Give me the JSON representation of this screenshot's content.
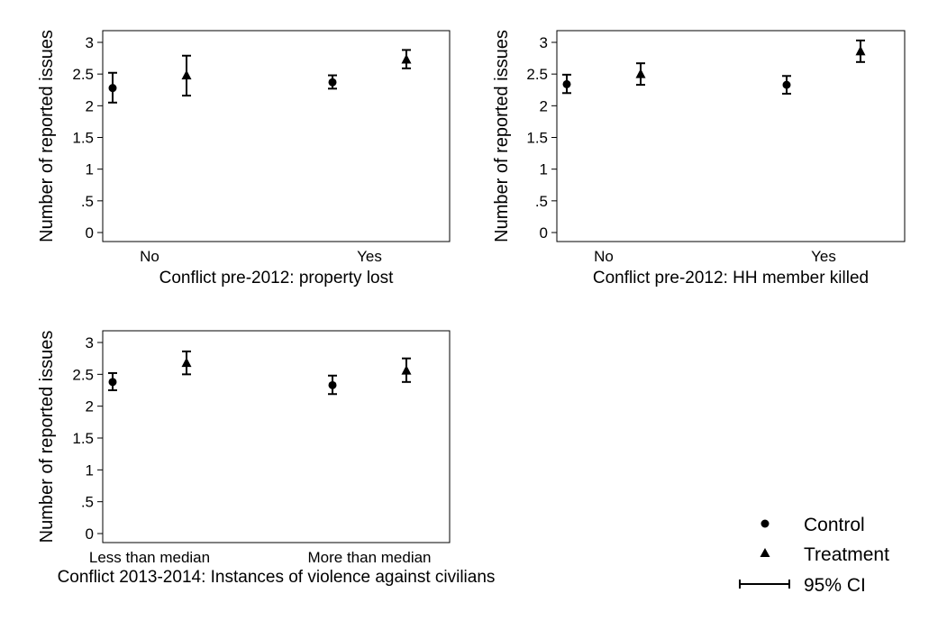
{
  "chart_data": [
    {
      "type": "scatter",
      "ylabel": "Number of reported issues",
      "xlabel": "Conflict pre-2012: property lost",
      "categories": [
        "No",
        "Yes"
      ],
      "ylim": [
        0,
        3
      ],
      "yticks": [
        "0",
        ".5",
        "1",
        "1.5",
        "2",
        "2.5",
        "3"
      ],
      "grid": false,
      "series": [
        {
          "name": "Control",
          "marker": "circle",
          "values": [
            2.28,
            2.37
          ],
          "ci": [
            [
              2.05,
              2.52
            ],
            [
              2.27,
              2.48
            ]
          ]
        },
        {
          "name": "Treatment",
          "marker": "triangle",
          "values": [
            2.48,
            2.73
          ],
          "ci": [
            [
              2.16,
              2.79
            ],
            [
              2.59,
              2.88
            ]
          ]
        }
      ]
    },
    {
      "type": "scatter",
      "ylabel": "Number of reported issues",
      "xlabel": "Conflict pre-2012: HH member killed",
      "categories": [
        "No",
        "Yes"
      ],
      "ylim": [
        0,
        3
      ],
      "yticks": [
        "0",
        ".5",
        "1",
        "1.5",
        "2",
        "2.5",
        "3"
      ],
      "grid": false,
      "series": [
        {
          "name": "Control",
          "marker": "circle",
          "values": [
            2.34,
            2.33
          ],
          "ci": [
            [
              2.2,
              2.49
            ],
            [
              2.19,
              2.47
            ]
          ]
        },
        {
          "name": "Treatment",
          "marker": "triangle",
          "values": [
            2.5,
            2.86
          ],
          "ci": [
            [
              2.33,
              2.67
            ],
            [
              2.69,
              3.03
            ]
          ]
        }
      ]
    },
    {
      "type": "scatter",
      "ylabel": "Number of reported issues",
      "xlabel": "Conflict 2013-2014: Instances of violence against civilians",
      "categories": [
        "Less than median",
        "More than median"
      ],
      "ylim": [
        0,
        3
      ],
      "yticks": [
        "0",
        ".5",
        "1",
        "1.5",
        "2",
        "2.5",
        "3"
      ],
      "grid": false,
      "series": [
        {
          "name": "Control",
          "marker": "circle",
          "values": [
            2.38,
            2.33
          ],
          "ci": [
            [
              2.25,
              2.52
            ],
            [
              2.19,
              2.48
            ]
          ]
        },
        {
          "name": "Treatment",
          "marker": "triangle",
          "values": [
            2.68,
            2.56
          ],
          "ci": [
            [
              2.5,
              2.86
            ],
            [
              2.38,
              2.75
            ]
          ]
        }
      ]
    }
  ],
  "legend": {
    "placement": "bottom-right",
    "items": [
      {
        "label": "Control",
        "marker": "circle"
      },
      {
        "label": "Treatment",
        "marker": "triangle"
      },
      {
        "label": "95% CI",
        "marker": "ci-bar"
      }
    ]
  }
}
